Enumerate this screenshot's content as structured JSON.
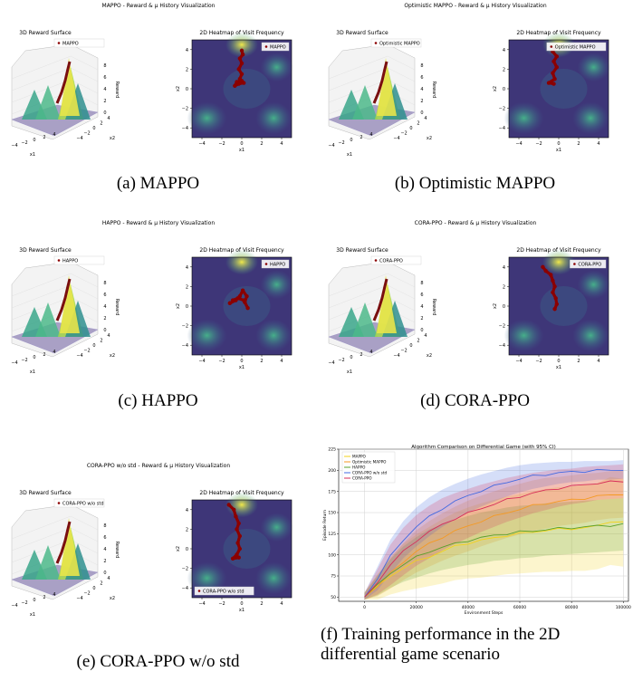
{
  "chart_data": [
    {
      "type": "heatmap",
      "title": "MAPPO - Reward & μ History Visualization",
      "surface_title": "3D Reward Surface",
      "heatmap_title": "2D Heatmap of Visit Frequency",
      "legend": "MAPPO",
      "xlabel": "x1",
      "ylabel": "x2",
      "zlabel": "Reward",
      "x_ticks": [
        "−4",
        "−2",
        "0",
        "2",
        "4"
      ],
      "y_ticks": [
        "4",
        "2",
        "0",
        "−2",
        "−4"
      ],
      "z_ticks": [
        "8",
        "6",
        "4",
        "2",
        "0"
      ],
      "xlim": [
        -5,
        5
      ],
      "ylim": [
        -5,
        5
      ],
      "trajectory": [
        [
          0,
          0.8
        ],
        [
          -0.5,
          0.7
        ],
        [
          -0.7,
          0.3
        ],
        [
          -0.3,
          0.5
        ],
        [
          0.2,
          0.6
        ],
        [
          -0.2,
          1.0
        ],
        [
          0,
          1.5
        ],
        [
          -0.3,
          2.0
        ],
        [
          0,
          2.6
        ],
        [
          -0.2,
          3.1
        ],
        [
          0.1,
          3.5
        ],
        [
          0,
          3.9
        ]
      ],
      "caption": "(a) MAPPO"
    },
    {
      "type": "heatmap",
      "title": "Optimistic MAPPO - Reward & μ History Visualization",
      "surface_title": "3D Reward Surface",
      "heatmap_title": "2D Heatmap of Visit Frequency",
      "legend": "Optimistic MAPPO",
      "xlabel": "x1",
      "ylabel": "x2",
      "zlabel": "Reward",
      "x_ticks": [
        "−4",
        "−2",
        "0",
        "2",
        "4"
      ],
      "y_ticks": [
        "4",
        "2",
        "0",
        "−2",
        "−4"
      ],
      "z_ticks": [
        "8",
        "6",
        "4",
        "2",
        "0"
      ],
      "xlim": [
        -5,
        5
      ],
      "ylim": [
        -5,
        5
      ],
      "trajectory": [
        [
          -0.5,
          0.5
        ],
        [
          -1,
          0.6
        ],
        [
          -0.4,
          1.0
        ],
        [
          -0.6,
          1.6
        ],
        [
          -0.2,
          2.2
        ],
        [
          -0.5,
          2.8
        ],
        [
          -0.2,
          3.3
        ],
        [
          -0.6,
          3.8
        ],
        [
          -0.4,
          4.2
        ]
      ],
      "caption": "(b) Optimistic MAPPO"
    },
    {
      "type": "heatmap",
      "title": "HAPPO - Reward & μ History Visualization",
      "surface_title": "3D Reward Surface",
      "heatmap_title": "2D Heatmap of Visit Frequency",
      "legend": "HAPPO",
      "xlabel": "x1",
      "ylabel": "x2",
      "zlabel": "Reward",
      "x_ticks": [
        "−4",
        "−2",
        "0",
        "2",
        "4"
      ],
      "y_ticks": [
        "4",
        "2",
        "0",
        "−2",
        "−4"
      ],
      "z_ticks": [
        "8",
        "6",
        "4",
        "2",
        "0"
      ],
      "xlim": [
        -5,
        5
      ],
      "ylim": [
        -5,
        5
      ],
      "trajectory": [
        [
          -1.2,
          0.3
        ],
        [
          -0.6,
          0.6
        ],
        [
          -0.2,
          1.0
        ],
        [
          0.1,
          1.6
        ],
        [
          0.5,
          1.0
        ],
        [
          0.3,
          0.4
        ],
        [
          0.6,
          -0.2
        ],
        [
          0.2,
          0.6
        ],
        [
          -0.4,
          0.8
        ],
        [
          -0.9,
          0.6
        ]
      ],
      "caption": "(c) HAPPO"
    },
    {
      "type": "heatmap",
      "title": "CORA-PPO - Reward & μ History Visualization",
      "surface_title": "3D Reward Surface",
      "heatmap_title": "2D Heatmap of Visit Frequency",
      "legend": "CORA-PPO",
      "xlabel": "x1",
      "ylabel": "x2",
      "zlabel": "Reward",
      "x_ticks": [
        "−4",
        "−2",
        "0",
        "2",
        "4"
      ],
      "y_ticks": [
        "4",
        "2",
        "0",
        "−2",
        "−4"
      ],
      "z_ticks": [
        "8",
        "6",
        "4",
        "2",
        "0"
      ],
      "xlim": [
        -5,
        5
      ],
      "ylim": [
        -5,
        5
      ],
      "trajectory": [
        [
          -1.6,
          4.0
        ],
        [
          -1.3,
          3.6
        ],
        [
          -0.8,
          3.2
        ],
        [
          -0.6,
          2.6
        ],
        [
          -0.4,
          2.0
        ],
        [
          -0.6,
          1.4
        ],
        [
          -0.3,
          0.8
        ],
        [
          -0.2,
          0.2
        ],
        [
          -0.4,
          -0.3
        ]
      ],
      "caption": "(d) CORA-PPO"
    },
    {
      "type": "heatmap",
      "title": "CORA-PPO w/o std - Reward & μ History Visualization",
      "surface_title": "3D Reward Surface",
      "heatmap_title": "2D Heatmap of Visit Frequency",
      "legend": "CORA-PPO w/o std",
      "xlabel": "x1",
      "ylabel": "x2",
      "zlabel": "Reward",
      "x_ticks": [
        "−4",
        "−2",
        "0",
        "2",
        "4"
      ],
      "y_ticks": [
        "4",
        "2",
        "0",
        "−2",
        "−4"
      ],
      "z_ticks": [
        "8",
        "6",
        "4",
        "2",
        "0"
      ],
      "xlim": [
        -5,
        5
      ],
      "ylim": [
        -5,
        5
      ],
      "trajectory": [
        [
          -1.3,
          4.5
        ],
        [
          -0.8,
          4.0
        ],
        [
          -0.6,
          3.3
        ],
        [
          -0.3,
          2.6
        ],
        [
          -0.5,
          2.0
        ],
        [
          -0.2,
          1.3
        ],
        [
          -0.4,
          0.6
        ],
        [
          -0.2,
          0.0
        ],
        [
          -0.5,
          -0.6
        ],
        [
          -0.9,
          -1.0
        ],
        [
          -0.3,
          -0.9
        ]
      ],
      "caption": "(e) CORA-PPO w/o std"
    },
    {
      "type": "line",
      "title": "Algorithm Comparison on Differential Game (with 95% CI)",
      "xlabel": "Environment Steps",
      "ylabel": "Episode Return",
      "xlim": [
        -10000,
        102000
      ],
      "ylim": [
        45,
        225
      ],
      "x_ticks": [
        0,
        20000,
        40000,
        60000,
        80000,
        100000
      ],
      "y_ticks": [
        50,
        75,
        100,
        125,
        150,
        175,
        200,
        225
      ],
      "x": [
        0,
        5000,
        10000,
        15000,
        20000,
        25000,
        30000,
        35000,
        40000,
        45000,
        50000,
        55000,
        60000,
        65000,
        70000,
        75000,
        80000,
        85000,
        90000,
        95000,
        100000
      ],
      "series": [
        {
          "name": "MAPPO",
          "color": "#f2d21b",
          "values": [
            50,
            62,
            75,
            85,
            92,
            98,
            104,
            110,
            114,
            117,
            120,
            123,
            125,
            127,
            129,
            130,
            131,
            132,
            134,
            140,
            138
          ],
          "ci": [
            6,
            15,
            22,
            28,
            32,
            35,
            38,
            40,
            42,
            44,
            45,
            46,
            47,
            48,
            49,
            50,
            50,
            51,
            51,
            52,
            52
          ]
        },
        {
          "name": "Optimistic MAPPO",
          "color": "#f59a23",
          "values": [
            50,
            63,
            78,
            92,
            104,
            113,
            121,
            128,
            134,
            140,
            145,
            150,
            154,
            158,
            161,
            163,
            165,
            167,
            169,
            171,
            172
          ],
          "ci": [
            5,
            12,
            18,
            22,
            25,
            27,
            28,
            29,
            30,
            30,
            30,
            30,
            30,
            30,
            30,
            29,
            29,
            29,
            28,
            28,
            28
          ]
        },
        {
          "name": "HAPPO",
          "color": "#5aa02c",
          "values": [
            50,
            64,
            78,
            89,
            97,
            104,
            109,
            113,
            117,
            120,
            123,
            125,
            127,
            128,
            130,
            131,
            132,
            133,
            134,
            135,
            136
          ],
          "ci": [
            5,
            12,
            17,
            21,
            24,
            26,
            27,
            28,
            29,
            30,
            30,
            31,
            31,
            31,
            31,
            31,
            31,
            31,
            31,
            31,
            31
          ]
        },
        {
          "name": "CORA-PPO w/o std",
          "color": "#4169e1",
          "values": [
            50,
            72,
            98,
            118,
            133,
            145,
            155,
            163,
            170,
            176,
            181,
            186,
            190,
            193,
            195,
            197,
            198,
            199,
            200,
            200,
            201
          ],
          "ci": [
            5,
            14,
            20,
            22,
            23,
            23,
            22,
            21,
            20,
            19,
            18,
            17,
            16,
            15,
            14,
            13,
            12,
            12,
            11,
            11,
            11
          ]
        },
        {
          "name": "CORA-PPO",
          "color": "#d62d5a",
          "values": [
            50,
            68,
            88,
            104,
            117,
            127,
            136,
            143,
            149,
            155,
            160,
            165,
            169,
            173,
            176,
            179,
            181,
            183,
            185,
            186,
            187
          ],
          "ci": [
            5,
            15,
            24,
            28,
            30,
            31,
            31,
            30,
            29,
            28,
            27,
            26,
            25,
            24,
            23,
            22,
            21,
            21,
            20,
            20,
            20
          ]
        }
      ],
      "legend_position": "top-left",
      "grid": true,
      "caption": "(f) Training performance in the 2D differential game scenario"
    }
  ]
}
